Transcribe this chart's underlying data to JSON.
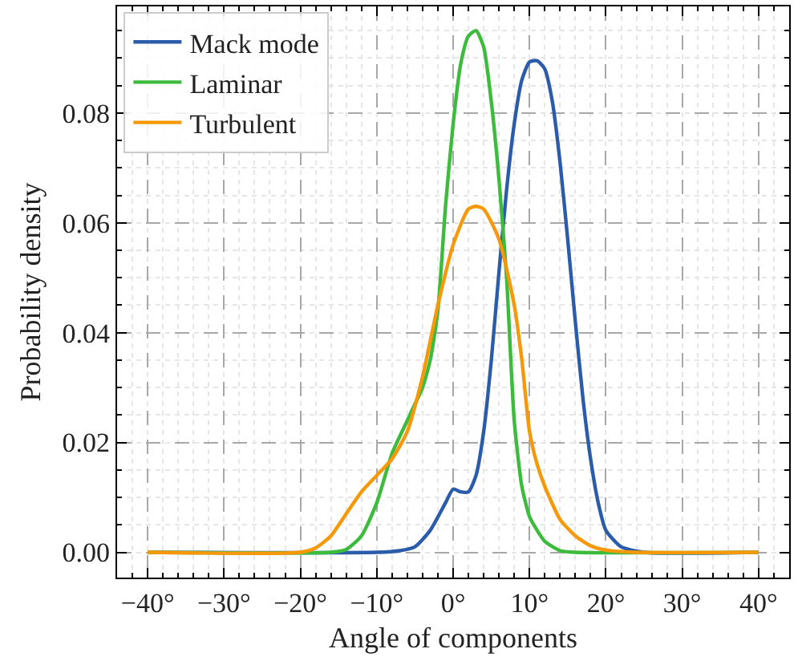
{
  "chart_data": {
    "type": "line",
    "xlabel": "Angle of components",
    "ylabel": "Probability density",
    "xlim": [
      -44,
      44
    ],
    "ylim": [
      -0.0046,
      0.0994
    ],
    "xticks": [
      {
        "value": -40,
        "label": "−40°"
      },
      {
        "value": -30,
        "label": "−30°"
      },
      {
        "value": -20,
        "label": "−20°"
      },
      {
        "value": -10,
        "label": "−10°"
      },
      {
        "value": 0,
        "label": "0°"
      },
      {
        "value": 10,
        "label": "10°"
      },
      {
        "value": 20,
        "label": "20°"
      },
      {
        "value": 30,
        "label": "30°"
      },
      {
        "value": 40,
        "label": "40°"
      }
    ],
    "yticks": [
      {
        "value": 0,
        "label": "0.00"
      },
      {
        "value": 0.02,
        "label": "0.02"
      },
      {
        "value": 0.04,
        "label": "0.04"
      },
      {
        "value": 0.06,
        "label": "0.06"
      },
      {
        "value": 0.08,
        "label": "0.08"
      }
    ],
    "grid": true,
    "legend": "top left",
    "marker": "none",
    "line_style": "solid",
    "series": [
      {
        "name": "Mack mode",
        "color": "#2a5caa",
        "x": [
          -40,
          -10,
          -7,
          -5,
          -3,
          -1,
          0,
          1,
          2,
          3,
          4,
          5,
          6,
          7,
          8,
          9,
          10,
          11,
          12,
          13,
          14,
          15,
          16,
          17,
          18,
          19,
          20,
          22,
          25,
          40
        ],
        "values": [
          0,
          0,
          0.0003,
          0.001,
          0.004,
          0.009,
          0.0115,
          0.011,
          0.011,
          0.014,
          0.022,
          0.035,
          0.051,
          0.066,
          0.078,
          0.086,
          0.0893,
          0.0895,
          0.088,
          0.082,
          0.071,
          0.057,
          0.042,
          0.028,
          0.017,
          0.009,
          0.004,
          0.001,
          0,
          0
        ]
      },
      {
        "name": "Laminar",
        "color": "#3dbb3d",
        "x": [
          -40,
          -16,
          -14,
          -12,
          -10,
          -8,
          -6,
          -5,
          -4,
          -3,
          -2,
          -1,
          0,
          1,
          2,
          3,
          4,
          5,
          6,
          7,
          8,
          9,
          10,
          11,
          12,
          14,
          16,
          40
        ],
        "values": [
          0,
          0,
          0.0005,
          0.003,
          0.009,
          0.018,
          0.024,
          0.027,
          0.03,
          0.035,
          0.044,
          0.063,
          0.078,
          0.089,
          0.094,
          0.095,
          0.092,
          0.082,
          0.068,
          0.05,
          0.024,
          0.012,
          0.0065,
          0.004,
          0.002,
          0.0003,
          0,
          0
        ]
      },
      {
        "name": "Turbulent",
        "color": "#f5980a",
        "x": [
          -40,
          -20,
          -18,
          -16,
          -14,
          -12,
          -10,
          -8,
          -6,
          -4,
          -2,
          0,
          2,
          3,
          4,
          6,
          8,
          9,
          10,
          11,
          12,
          14,
          16,
          18,
          20,
          24,
          40
        ],
        "values": [
          0,
          0,
          0.0008,
          0.003,
          0.007,
          0.011,
          0.014,
          0.017,
          0.022,
          0.032,
          0.045,
          0.056,
          0.0625,
          0.063,
          0.0625,
          0.057,
          0.045,
          0.035,
          0.022,
          0.016,
          0.012,
          0.006,
          0.003,
          0.0012,
          0.0004,
          0,
          0
        ]
      }
    ]
  }
}
